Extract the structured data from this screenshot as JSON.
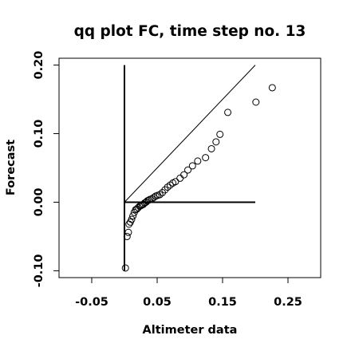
{
  "chart_data": {
    "type": "scatter",
    "title": "qq plot FC, time step no. 13",
    "xlabel": "Altimeter data",
    "ylabel": "Forecast",
    "xlim": [
      -0.1,
      0.3
    ],
    "ylim": [
      -0.11,
      0.21
    ],
    "x_ticks": [
      -0.05,
      0.05,
      0.15,
      0.25
    ],
    "x_tick_labels": [
      "-0.05",
      "0.05",
      "0.15",
      "0.25"
    ],
    "y_ticks": [
      -0.1,
      0.0,
      0.1,
      0.2
    ],
    "y_tick_labels": [
      "-0.10",
      "0.00",
      "0.10",
      "0.20"
    ],
    "grid": false,
    "legend": "none",
    "reference_lines": [
      {
        "kind": "diagonal",
        "x": [
          0.0,
          0.2
        ],
        "y": [
          0.0,
          0.2
        ]
      },
      {
        "kind": "vertical",
        "x": [
          0.0,
          0.0
        ],
        "y": [
          -0.1,
          0.2
        ]
      },
      {
        "kind": "horizontal",
        "x": [
          0.0,
          0.2
        ],
        "y": [
          0.0,
          0.0
        ]
      }
    ],
    "points": [
      {
        "x": 0.0015,
        "y": -0.096
      },
      {
        "x": 0.004,
        "y": -0.05
      },
      {
        "x": 0.006,
        "y": -0.044
      },
      {
        "x": 0.007,
        "y": -0.032
      },
      {
        "x": 0.009,
        "y": -0.029
      },
      {
        "x": 0.011,
        "y": -0.025
      },
      {
        "x": 0.013,
        "y": -0.02
      },
      {
        "x": 0.015,
        "y": -0.015
      },
      {
        "x": 0.017,
        "y": -0.011
      },
      {
        "x": 0.019,
        "y": -0.01
      },
      {
        "x": 0.021,
        "y": -0.008
      },
      {
        "x": 0.023,
        "y": -0.006
      },
      {
        "x": 0.025,
        "y": -0.005
      },
      {
        "x": 0.027,
        "y": -0.004
      },
      {
        "x": 0.029,
        "y": -0.003
      },
      {
        "x": 0.031,
        "y": -0.001
      },
      {
        "x": 0.033,
        "y": 0.0
      },
      {
        "x": 0.035,
        "y": 0.002
      },
      {
        "x": 0.037,
        "y": 0.003
      },
      {
        "x": 0.039,
        "y": 0.004
      },
      {
        "x": 0.042,
        "y": 0.005
      },
      {
        "x": 0.045,
        "y": 0.007
      },
      {
        "x": 0.048,
        "y": 0.009
      },
      {
        "x": 0.051,
        "y": 0.01
      },
      {
        "x": 0.054,
        "y": 0.011
      },
      {
        "x": 0.058,
        "y": 0.014
      },
      {
        "x": 0.062,
        "y": 0.018
      },
      {
        "x": 0.066,
        "y": 0.022
      },
      {
        "x": 0.07,
        "y": 0.025
      },
      {
        "x": 0.074,
        "y": 0.028
      },
      {
        "x": 0.078,
        "y": 0.03
      },
      {
        "x": 0.085,
        "y": 0.035
      },
      {
        "x": 0.091,
        "y": 0.04
      },
      {
        "x": 0.097,
        "y": 0.047
      },
      {
        "x": 0.104,
        "y": 0.053
      },
      {
        "x": 0.112,
        "y": 0.06
      },
      {
        "x": 0.124,
        "y": 0.065
      },
      {
        "x": 0.133,
        "y": 0.078
      },
      {
        "x": 0.14,
        "y": 0.088
      },
      {
        "x": 0.146,
        "y": 0.099
      },
      {
        "x": 0.158,
        "y": 0.131
      },
      {
        "x": 0.201,
        "y": 0.146
      },
      {
        "x": 0.226,
        "y": 0.167
      }
    ]
  }
}
